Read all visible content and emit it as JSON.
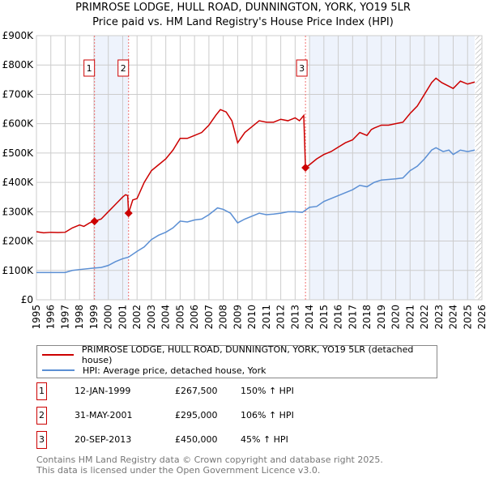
{
  "chart_data": {
    "type": "line",
    "title": "PRIMROSE LODGE, HULL ROAD, DUNNINGTON, YORK, YO19 5LR",
    "subtitle": "Price paid vs. HM Land Registry's House Price Index (HPI)",
    "xlim": [
      1995,
      2026
    ],
    "ylim": [
      0,
      900000
    ],
    "x_ticks": [
      "1995",
      "1996",
      "1997",
      "1998",
      "1999",
      "2000",
      "2001",
      "2002",
      "2003",
      "2004",
      "2005",
      "2006",
      "2007",
      "2008",
      "2009",
      "2010",
      "2011",
      "2012",
      "2013",
      "2014",
      "2015",
      "2016",
      "2017",
      "2018",
      "2019",
      "2020",
      "2021",
      "2022",
      "2023",
      "2024",
      "2025",
      "2026"
    ],
    "y_ticks": [
      {
        "v": 0,
        "label": "£0"
      },
      {
        "v": 100000,
        "label": "£100K"
      },
      {
        "v": 200000,
        "label": "£200K"
      },
      {
        "v": 300000,
        "label": "£300K"
      },
      {
        "v": 400000,
        "label": "£400K"
      },
      {
        "v": 500000,
        "label": "£500K"
      },
      {
        "v": 600000,
        "label": "£600K"
      },
      {
        "v": 700000,
        "label": "£700K"
      },
      {
        "v": 800000,
        "label": "£800K"
      },
      {
        "v": 900000,
        "label": "£900K"
      }
    ],
    "grid": true,
    "colors": {
      "property": "#cc0000",
      "hpi": "#5b8fd4",
      "shade": "#eef3fc"
    },
    "shaded_ranges": [
      [
        1999.04,
        2001.41
      ],
      [
        2014.0,
        2025.5
      ]
    ],
    "hatched_from": 2025.55,
    "series": [
      {
        "name": "PRIMROSE LODGE, HULL ROAD, DUNNINGTON, YORK, YO19 5LR (detached house)",
        "color": "#cc0000",
        "x": [
          1995,
          1995.5,
          1996,
          1996.5,
          1997,
          1997.5,
          1998,
          1998.3,
          1998.7,
          1999.04,
          1999.5,
          2000,
          2000.5,
          2001,
          2001.2,
          2001.35,
          2001.41,
          2001.7,
          2002,
          2002.5,
          2003,
          2003.5,
          2004,
          2004.5,
          2005,
          2005.5,
          2006,
          2006.5,
          2007,
          2007.5,
          2007.8,
          2008.2,
          2008.6,
          2009,
          2009.5,
          2010,
          2010.5,
          2011,
          2011.5,
          2012,
          2012.5,
          2013,
          2013.3,
          2013.6,
          2013.72,
          2014,
          2014.5,
          2015,
          2015.5,
          2016,
          2016.5,
          2017,
          2017.5,
          2018,
          2018.3,
          2018.5,
          2019,
          2019.5,
          2020,
          2020.5,
          2021,
          2021.5,
          2022,
          2022.5,
          2022.8,
          2023.2,
          2023.6,
          2024,
          2024.5,
          2025,
          2025.5
        ],
        "y": [
          232000,
          228000,
          230000,
          229000,
          230000,
          245000,
          255000,
          250000,
          262000,
          267500,
          275000,
          300000,
          325000,
          350000,
          358000,
          355000,
          295000,
          340000,
          345000,
          400000,
          440000,
          460000,
          480000,
          510000,
          550000,
          550000,
          560000,
          570000,
          595000,
          630000,
          648000,
          640000,
          610000,
          535000,
          570000,
          590000,
          610000,
          605000,
          605000,
          615000,
          610000,
          620000,
          610000,
          628000,
          450000,
          460000,
          480000,
          495000,
          505000,
          520000,
          535000,
          545000,
          570000,
          560000,
          580000,
          585000,
          595000,
          595000,
          600000,
          605000,
          635000,
          660000,
          700000,
          740000,
          755000,
          740000,
          730000,
          720000,
          745000,
          735000,
          742000
        ]
      },
      {
        "name": "HPI: Average price, detached house, York",
        "color": "#5b8fd4",
        "x": [
          1995,
          1996,
          1997,
          1997.5,
          1998,
          1999,
          1999.5,
          2000,
          2000.5,
          2001,
          2001.4,
          2002,
          2002.5,
          2003,
          2003.5,
          2004,
          2004.5,
          2005,
          2005.5,
          2006,
          2006.5,
          2007,
          2007.6,
          2008,
          2008.5,
          2009,
          2009.5,
          2010,
          2010.5,
          2011,
          2011.5,
          2012,
          2012.5,
          2013,
          2013.5,
          2014,
          2014.5,
          2015,
          2015.5,
          2016,
          2016.5,
          2017,
          2017.5,
          2018,
          2018.5,
          2019,
          2019.5,
          2020,
          2020.5,
          2021,
          2021.5,
          2022,
          2022.5,
          2022.8,
          2023.3,
          2023.7,
          2024,
          2024.5,
          2025,
          2025.5
        ],
        "y": [
          93000,
          93000,
          93000,
          100000,
          103000,
          108000,
          110000,
          117000,
          130000,
          140000,
          145000,
          165000,
          180000,
          205000,
          220000,
          230000,
          245000,
          268000,
          265000,
          272000,
          275000,
          290000,
          313000,
          308000,
          295000,
          262000,
          275000,
          285000,
          295000,
          290000,
          292000,
          295000,
          300000,
          300000,
          298000,
          315000,
          318000,
          335000,
          345000,
          355000,
          365000,
          375000,
          390000,
          385000,
          400000,
          408000,
          410000,
          412000,
          415000,
          440000,
          455000,
          480000,
          510000,
          518000,
          505000,
          510000,
          495000,
          510000,
          505000,
          510000
        ]
      }
    ],
    "sales": [
      {
        "id": "1",
        "x": 1999.04,
        "y": 267500,
        "date": "12-JAN-1999",
        "price": "£267,500",
        "hpi": "150% ↑ HPI"
      },
      {
        "id": "2",
        "x": 2001.41,
        "y": 295000,
        "date": "31-MAY-2001",
        "price": "£295,000",
        "hpi": "106% ↑ HPI"
      },
      {
        "id": "3",
        "x": 2013.72,
        "y": 450000,
        "date": "20-SEP-2013",
        "price": "£450,000",
        "hpi": "45% ↑ HPI"
      }
    ]
  },
  "footer": {
    "line1": "Contains HM Land Registry data © Crown copyright and database right 2025.",
    "line2": "This data is licensed under the Open Government Licence v3.0."
  }
}
